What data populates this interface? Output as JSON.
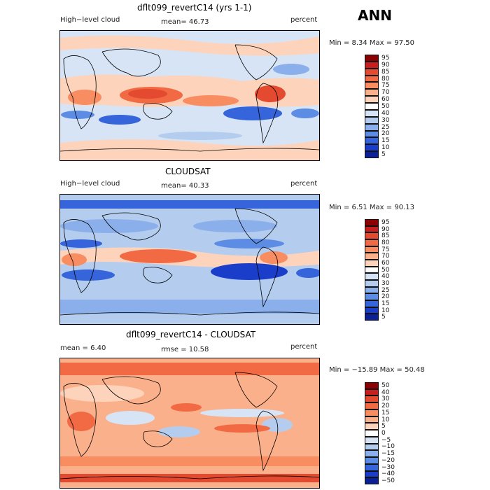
{
  "season": "ANN",
  "panels": [
    {
      "title": "dflt099_revertC14 (yrs 1-1)",
      "left_label": "High−level cloud",
      "mid_label": "mean=  46.73",
      "right_label": "percent",
      "minmax": "Min =    8.34  Max =   97.50",
      "scale": [
        "95",
        "90",
        "85",
        "80",
        "75",
        "70",
        "60",
        "50",
        "40",
        "30",
        "25",
        "20",
        "15",
        "10",
        "5"
      ],
      "colors": [
        "#8b0000",
        "#c81e1e",
        "#e34a2f",
        "#f16a43",
        "#f88d62",
        "#fbb08c",
        "#fdd3bc",
        "#ffffff",
        "#d6e4f5",
        "#b4cdef",
        "#8bafea",
        "#5d8ce4",
        "#3564db",
        "#1a3ec9",
        "#0b1f96"
      ]
    },
    {
      "title": "CLOUDSAT",
      "left_label": "High−level cloud",
      "mid_label": "mean=  40.33",
      "right_label": "percent",
      "minmax": "Min =    6.51  Max =   90.13",
      "scale": [
        "95",
        "90",
        "85",
        "80",
        "75",
        "70",
        "60",
        "50",
        "40",
        "30",
        "25",
        "20",
        "15",
        "10",
        "5"
      ],
      "colors": [
        "#8b0000",
        "#c81e1e",
        "#e34a2f",
        "#f16a43",
        "#f88d62",
        "#fbb08c",
        "#fdd3bc",
        "#ffffff",
        "#d6e4f5",
        "#b4cdef",
        "#8bafea",
        "#5d8ce4",
        "#3564db",
        "#1a3ec9",
        "#0b1f96"
      ]
    },
    {
      "title": "dflt099_revertC14 - CLOUDSAT",
      "left_label": "mean =    6.40",
      "mid_label": "rmse =   10.58",
      "right_label": "percent",
      "minmax": "Min = −15.89  Max =   50.48",
      "scale": [
        "50",
        "40",
        "30",
        "20",
        "15",
        "10",
        "5",
        "0",
        "−5",
        "−10",
        "−15",
        "−20",
        "−30",
        "−40",
        "−50"
      ],
      "colors": [
        "#8b0000",
        "#c81e1e",
        "#e34a2f",
        "#f16a43",
        "#f88d62",
        "#fbb08c",
        "#fdd3bc",
        "#ffffff",
        "#d6e4f5",
        "#b4cdef",
        "#8bafea",
        "#5d8ce4",
        "#3564db",
        "#1a3ec9",
        "#0b1f96"
      ]
    }
  ]
}
